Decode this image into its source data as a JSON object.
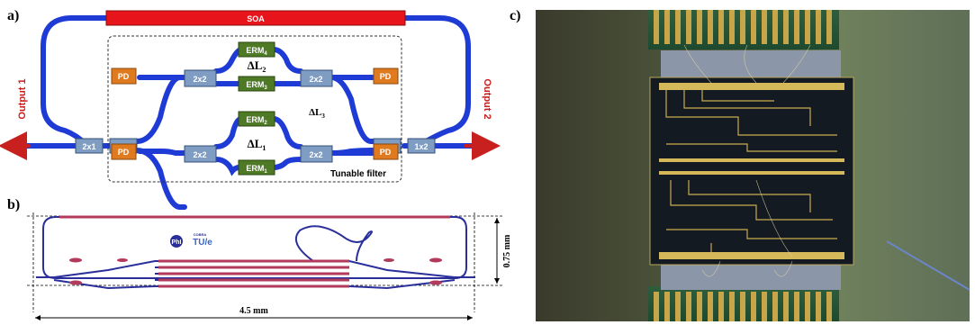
{
  "panels": {
    "a": {
      "label": "a)",
      "soa": "SOA",
      "output1": "Output 1",
      "output2": "Output 2",
      "couplers": {
        "left_2x1": "2x1",
        "left_1x2": "1x2",
        "right_2x1": "2x1",
        "right_1x2": "1x2",
        "mmi_tl": "2x2",
        "mmi_tr": "2x2",
        "mmi_bl": "2x2",
        "mmi_br": "2x2"
      },
      "pd": "PD",
      "erm": {
        "erm4": {
          "base": "ERM",
          "sub": "4"
        },
        "erm3": {
          "base": "ERM",
          "sub": "3"
        },
        "erm2": {
          "base": "ERM",
          "sub": "2"
        },
        "erm1": {
          "base": "ERM",
          "sub": "1"
        }
      },
      "delta_l2": {
        "base": "ΔL",
        "sub": "2"
      },
      "delta_l1": {
        "base": "ΔL",
        "sub": "1"
      },
      "delta_l3": {
        "base": "ΔL",
        "sub": "3"
      },
      "tunable_filter": "Tunable filter",
      "colors": {
        "waveguide": "#1f3bd6",
        "soa": "#e8141b",
        "coupler": "#7f9cc2",
        "pd": "#e07a1f",
        "erm": "#4e7a26",
        "arrow": "#c8201e"
      }
    },
    "b": {
      "label": "b)",
      "width_dim": "4.5 mm",
      "height_dim": "0.75 mm",
      "logo_left": "PhI",
      "logo_right": "TU/e",
      "logo_small": "COBRA",
      "colors": {
        "outline": "#2b2f9a",
        "section": "#b23a5a"
      }
    },
    "c": {
      "label": "c)"
    }
  }
}
